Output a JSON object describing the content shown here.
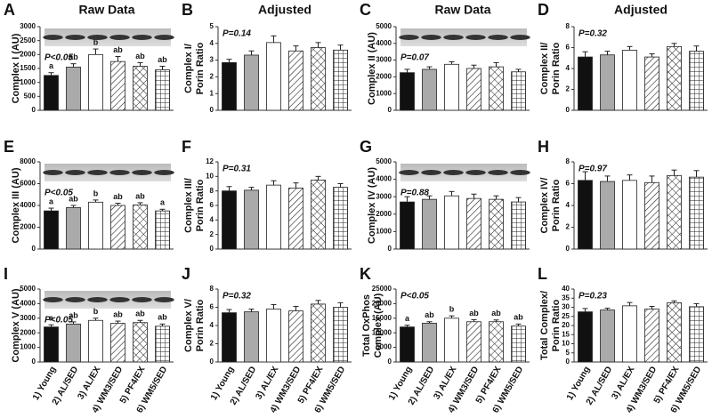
{
  "chart_data": [
    {
      "type": "bar",
      "panel_label": "A",
      "header": "Raw Data",
      "ylabel": [
        "Complex I (AU)"
      ],
      "p_text": "P<0.05",
      "blot": true,
      "categories": [
        null,
        null,
        null,
        null,
        null,
        null
      ],
      "values": [
        1250,
        1550,
        2000,
        1750,
        1580,
        1450
      ],
      "errors": [
        100,
        120,
        200,
        180,
        130,
        130
      ],
      "bar_labels": [
        "a",
        "ab",
        "b",
        "ab",
        "ab",
        "ab"
      ],
      "ylim": [
        0,
        3000
      ],
      "yticks": [
        0,
        500,
        1000,
        1500,
        2000,
        2500,
        3000
      ]
    },
    {
      "type": "bar",
      "panel_label": "B",
      "header": "Adjusted",
      "ylabel": [
        "Complex I/",
        "Porin Ratio"
      ],
      "p_text": "P=0.14",
      "blot": false,
      "categories": [
        null,
        null,
        null,
        null,
        null,
        null
      ],
      "values": [
        2.85,
        3.3,
        4.05,
        3.55,
        3.75,
        3.6
      ],
      "errors": [
        0.2,
        0.25,
        0.4,
        0.3,
        0.3,
        0.3
      ],
      "ylim": [
        0,
        5
      ],
      "yticks": [
        0,
        1,
        2,
        3,
        4,
        5
      ]
    },
    {
      "type": "bar",
      "panel_label": "C",
      "header": "Raw Data",
      "ylabel": [
        "Complex II (AU)"
      ],
      "p_text": "P=0.07",
      "blot": true,
      "categories": [
        null,
        null,
        null,
        null,
        null,
        null
      ],
      "values": [
        2250,
        2450,
        2750,
        2500,
        2600,
        2300
      ],
      "errors": [
        200,
        150,
        150,
        200,
        250,
        150
      ],
      "ylim": [
        0,
        5000
      ],
      "yticks": [
        0,
        1000,
        2000,
        3000,
        4000,
        5000
      ]
    },
    {
      "type": "bar",
      "panel_label": "D",
      "header": "Adjusted",
      "ylabel": [
        "Complex II/",
        "Porin Ratio"
      ],
      "p_text": "P=0.32",
      "blot": false,
      "categories": [
        null,
        null,
        null,
        null,
        null,
        null
      ],
      "values": [
        5.1,
        5.3,
        5.75,
        5.1,
        6.1,
        5.65
      ],
      "errors": [
        0.5,
        0.35,
        0.35,
        0.3,
        0.3,
        0.5
      ],
      "ylim": [
        0,
        8
      ],
      "yticks": [
        0,
        2,
        4,
        6,
        8
      ]
    },
    {
      "type": "bar",
      "panel_label": "E",
      "ylabel": [
        "Complex III (AU)"
      ],
      "p_text": "P<0.05",
      "blot": true,
      "categories": [
        null,
        null,
        null,
        null,
        null,
        null
      ],
      "values": [
        3500,
        3800,
        4300,
        4000,
        4050,
        3500
      ],
      "errors": [
        250,
        200,
        200,
        200,
        200,
        150
      ],
      "bar_labels": [
        "a",
        "ab",
        "b",
        "ab",
        "ab",
        "a"
      ],
      "ylim": [
        0,
        8000
      ],
      "yticks": [
        0,
        2000,
        4000,
        6000,
        8000
      ]
    },
    {
      "type": "bar",
      "panel_label": "F",
      "ylabel": [
        "Complex III/",
        "Porin Ratio"
      ],
      "p_text": "P=0.31",
      "blot": false,
      "categories": [
        null,
        null,
        null,
        null,
        null,
        null
      ],
      "values": [
        8.0,
        8.1,
        8.8,
        8.4,
        9.5,
        8.5
      ],
      "errors": [
        0.6,
        0.4,
        0.6,
        0.7,
        0.5,
        0.5
      ],
      "ylim": [
        0,
        12
      ],
      "yticks": [
        0,
        2,
        4,
        6,
        8,
        10,
        12
      ]
    },
    {
      "type": "bar",
      "panel_label": "G",
      "ylabel": [
        "Complex IV (AU)"
      ],
      "p_text": "P=0.88",
      "blot": true,
      "categories": [
        null,
        null,
        null,
        null,
        null,
        null
      ],
      "values": [
        2700,
        2850,
        3050,
        2900,
        2850,
        2700
      ],
      "errors": [
        300,
        200,
        250,
        250,
        200,
        250
      ],
      "ylim": [
        0,
        5000
      ],
      "yticks": [
        0,
        1000,
        2000,
        3000,
        4000,
        5000
      ]
    },
    {
      "type": "bar",
      "panel_label": "H",
      "ylabel": [
        "Complex IV/",
        "Porin Ratio"
      ],
      "p_text": "P=0.97",
      "blot": false,
      "categories": [
        null,
        null,
        null,
        null,
        null,
        null
      ],
      "values": [
        6.3,
        6.2,
        6.3,
        6.1,
        6.75,
        6.6
      ],
      "errors": [
        0.8,
        0.5,
        0.5,
        0.6,
        0.5,
        0.6
      ],
      "ylim": [
        0,
        8
      ],
      "yticks": [
        0,
        2,
        4,
        6,
        8
      ]
    },
    {
      "type": "bar",
      "panel_label": "I",
      "ylabel": [
        "Complex V (AU)"
      ],
      "p_text": "P<0.05",
      "blot": true,
      "categories": [
        "1) Young",
        "2) AL/SED",
        "3) AL/EX",
        "4) WM3/SED",
        "5) PF4/EX",
        "6) WM5/SED"
      ],
      "values": [
        2400,
        2600,
        2850,
        2650,
        2700,
        2450
      ],
      "errors": [
        150,
        150,
        150,
        150,
        150,
        150
      ],
      "bar_labels": [
        "a",
        "ab",
        "b",
        "ab",
        "ab",
        "ab"
      ],
      "ylim": [
        0,
        5000
      ],
      "yticks": [
        0,
        1000,
        2000,
        3000,
        4000,
        5000
      ]
    },
    {
      "type": "bar",
      "panel_label": "J",
      "ylabel": [
        "Complex V/",
        "Porin Ratio"
      ],
      "p_text": "P=0.32",
      "blot": false,
      "categories": [
        "1) Young",
        "2) AL/SED",
        "3) AL/EX",
        "4) WM3/SED",
        "5) PF4/EX",
        "6) WM5/SED"
      ],
      "values": [
        5.4,
        5.5,
        5.8,
        5.6,
        6.35,
        6.0
      ],
      "errors": [
        0.35,
        0.3,
        0.5,
        0.5,
        0.4,
        0.5
      ],
      "ylim": [
        0,
        8
      ],
      "yticks": [
        0,
        2,
        4,
        6,
        8
      ]
    },
    {
      "type": "bar",
      "panel_label": "K",
      "ylabel": [
        "Total OxPhos",
        "Complex (AU)"
      ],
      "p_text": "P<0.05",
      "blot": false,
      "categories": [
        "1) Young",
        "2) AL/SED",
        "3) AL/EX",
        "4) WM3/SED",
        "5) PF4/EX",
        "6) WM5/SED"
      ],
      "values": [
        12000,
        13300,
        15000,
        13800,
        13800,
        12300
      ],
      "errors": [
        600,
        500,
        800,
        700,
        600,
        700
      ],
      "bar_labels": [
        "a",
        "ab",
        "b",
        "ab",
        "ab",
        "ab"
      ],
      "ylim": [
        0,
        25000
      ],
      "yticks": [
        0,
        5000,
        10000,
        15000,
        20000,
        25000
      ]
    },
    {
      "type": "bar",
      "panel_label": "L",
      "ylabel": [
        "Total Complex/",
        "Porin Ratio"
      ],
      "p_text": "P=0.23",
      "blot": false,
      "categories": [
        "1) Young",
        "2) AL/SED",
        "3) AL/EX",
        "4) WM3/SED",
        "5) PF4/EX",
        "6) WM5/SED"
      ],
      "values": [
        27.5,
        28.5,
        30.8,
        29,
        32.5,
        30.3
      ],
      "errors": [
        1.8,
        1.0,
        1.8,
        1.5,
        1.0,
        1.7
      ],
      "ylim": [
        0,
        40
      ],
      "yticks": [
        0,
        5,
        10,
        15,
        20,
        25,
        30,
        35,
        40
      ]
    }
  ]
}
